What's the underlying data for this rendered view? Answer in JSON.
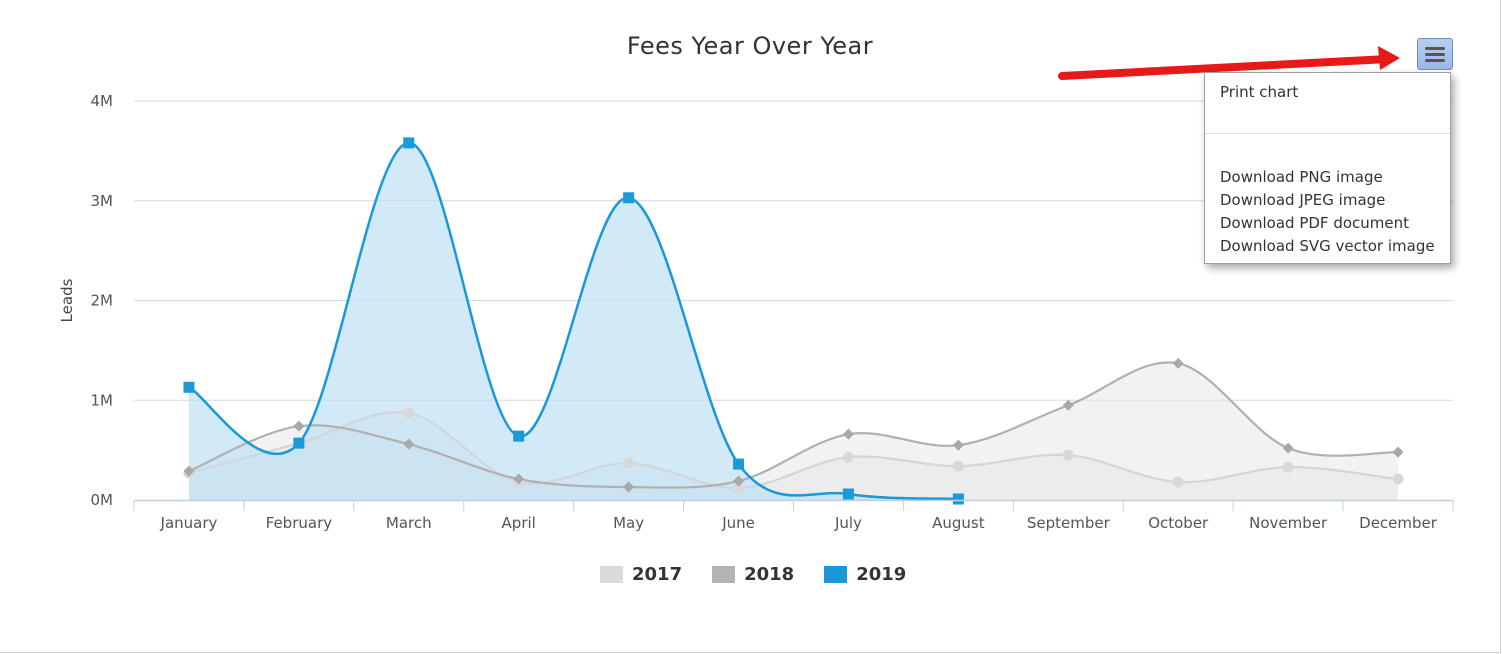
{
  "chart_data": {
    "type": "area",
    "title": "Fees Year Over Year",
    "xlabel": "",
    "ylabel": "Leads",
    "ylim": [
      0,
      4000000
    ],
    "yticks": [
      "0M",
      "1M",
      "2M",
      "3M",
      "4M"
    ],
    "yticks_values": [
      0,
      1000000,
      2000000,
      3000000,
      4000000
    ],
    "categories": [
      "January",
      "February",
      "March",
      "April",
      "May",
      "June",
      "July",
      "August",
      "September",
      "October",
      "November",
      "December"
    ],
    "series": [
      {
        "name": "2017",
        "marker": "circle",
        "values": [
          270000,
          570000,
          870000,
          180000,
          370000,
          120000,
          430000,
          340000,
          450000,
          180000,
          330000,
          210000
        ]
      },
      {
        "name": "2018",
        "marker": "diamond",
        "values": [
          290000,
          740000,
          560000,
          210000,
          130000,
          190000,
          660000,
          550000,
          950000,
          1370000,
          520000,
          480000
        ]
      },
      {
        "name": "2019",
        "marker": "square",
        "values": [
          1130000,
          570000,
          3580000,
          640000,
          3030000,
          360000,
          60000,
          10000,
          null,
          null,
          null,
          null
        ]
      }
    ],
    "legend": [
      "2017",
      "2018",
      "2019"
    ],
    "legend_position": "bottom-center",
    "grid": true
  },
  "colors": {
    "s2017_line": "#cfd6dc",
    "s2017_fill": "#ececec",
    "s2017_marker": "#d8d8d8",
    "s2018_line": "#b0b0b0",
    "s2018_fill": "#e8e8e8",
    "s2018_marker": "#a8a8a8",
    "s2019_line": "#1b98d8",
    "s2019_fill": "#bfe0f3",
    "s2019_marker": "#1a9ad9",
    "legend_2017": "#dadada",
    "legend_2018": "#b3b3b3",
    "legend_2019": "#1b98d8"
  },
  "menu": {
    "icon": "hamburger-menu-icon",
    "items": [
      {
        "label": "Print chart"
      },
      {
        "label": "Download PNG image"
      },
      {
        "label": "Download JPEG image"
      },
      {
        "label": "Download PDF document"
      },
      {
        "label": "Download SVG vector image"
      }
    ]
  },
  "annotation": {
    "icon": "red-arrow-icon",
    "color": "#e81919"
  }
}
